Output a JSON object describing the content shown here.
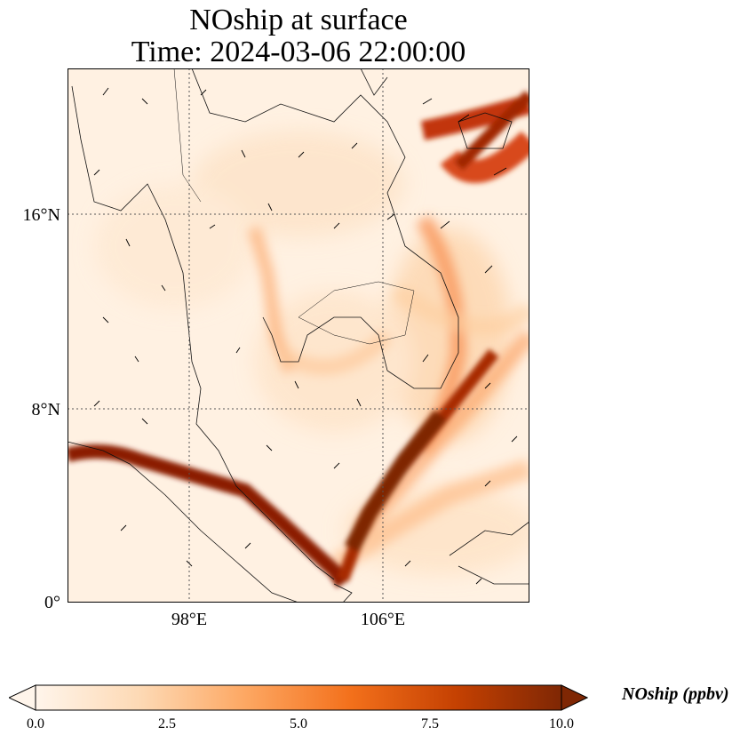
{
  "title": {
    "line1": "NOship at surface",
    "line2": "Time: 2024-03-06 22:00:00"
  },
  "axes": {
    "lat_labels": [
      "16°N",
      "8°N",
      "0°"
    ],
    "lon_labels": [
      "98°E",
      "106°E"
    ]
  },
  "colorbar": {
    "label": "NOship (ppbv)",
    "ticks": [
      "0.0",
      "2.5",
      "5.0",
      "7.5",
      "10.0"
    ],
    "min": 0,
    "max": 10,
    "colormap": [
      "#fff5eb",
      "#fdd9b4",
      "#fda762",
      "#f3701b",
      "#c54102",
      "#7f2704"
    ],
    "extend": "both"
  },
  "map": {
    "region": "Southeast Asia (Indochina, Malay Peninsula, Sumatra, Borneo)",
    "lon_range": [
      93,
      112
    ],
    "lat_range": [
      0,
      22
    ],
    "gridlines": "dotted",
    "vectors": "wind arrows"
  }
}
